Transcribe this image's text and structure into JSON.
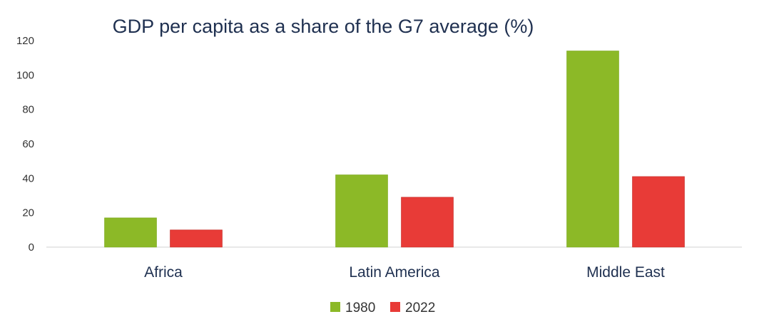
{
  "chart_data": {
    "type": "bar",
    "title": "GDP per capita as a share of the G7 average (%)",
    "xlabel": "",
    "ylabel": "",
    "ylim": [
      0,
      120
    ],
    "yticks": [
      0,
      20,
      40,
      60,
      80,
      100,
      120
    ],
    "grid": false,
    "legend_position": "bottom-center",
    "categories": [
      "Africa",
      "Latin America",
      "Middle East"
    ],
    "series": [
      {
        "name": "1980",
        "color": "#8cb927",
        "values": [
          17,
          42,
          114
        ]
      },
      {
        "name": "2022",
        "color": "#e83b37",
        "values": [
          10,
          29,
          41
        ]
      }
    ]
  }
}
